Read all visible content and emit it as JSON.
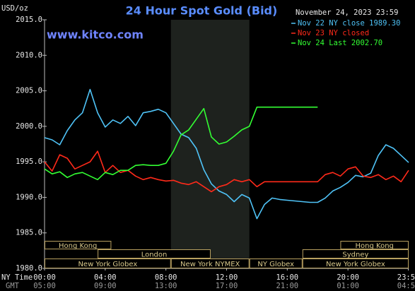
{
  "chart_data": {
    "type": "line",
    "title": "24 Hour Spot Gold (Bid)",
    "y_unit_label": "USD/oz",
    "date_label": "November 24, 2023 23:59",
    "watermark": "www.kitco.com",
    "x_row_label": "NY Time",
    "x2_row_label": "GMT",
    "x": [
      0,
      0.5,
      1,
      1.5,
      2,
      2.5,
      3,
      3.5,
      4,
      4.5,
      5,
      5.5,
      6,
      6.5,
      7,
      7.5,
      8,
      8.5,
      9,
      9.5,
      10,
      10.5,
      11,
      11.5,
      12,
      12.5,
      13,
      13.5,
      14,
      14.5,
      15,
      15.5,
      16,
      16.5,
      17,
      17.5,
      18,
      18.5,
      19,
      19.5,
      20,
      20.5,
      21,
      21.5,
      22,
      22.5,
      23,
      23.5,
      24
    ],
    "series": [
      {
        "name": "Nov 22 NY close 1989.30",
        "color": "#4fc3f7",
        "values": [
          1998.4,
          1998.1,
          1997.4,
          1999.4,
          2000.9,
          2001.9,
          2005.2,
          2001.9,
          1999.9,
          2000.9,
          2000.4,
          2001.4,
          2000.1,
          2001.9,
          2002.1,
          2002.4,
          2001.9,
          2000.4,
          1998.9,
          1998.4,
          1996.9,
          1993.9,
          1991.9,
          1990.9,
          1990.4,
          1989.4,
          1990.4,
          1989.9,
          1987.0,
          1989.0,
          1989.9,
          1989.7,
          1989.6,
          1989.5,
          1989.4,
          1989.3,
          1989.3,
          1989.9,
          1990.9,
          1991.4,
          1992.1,
          1993.1,
          1992.9,
          1993.4,
          1995.9,
          1997.4,
          1996.9,
          1995.9,
          1994.9
        ]
      },
      {
        "name": "Nov 23 NY closed",
        "color": "#ff2a1a",
        "values": [
          1995.0,
          1993.7,
          1996.0,
          1995.5,
          1994.0,
          1994.5,
          1995.0,
          1996.5,
          1993.5,
          1994.5,
          1993.5,
          1993.8,
          1993.0,
          1992.5,
          1992.8,
          1992.5,
          1992.3,
          1992.4,
          1992.0,
          1991.8,
          1992.2,
          1991.5,
          1990.8,
          1991.5,
          1991.8,
          1992.5,
          1992.2,
          1992.5,
          1991.5,
          1992.2,
          1992.2,
          1992.2,
          1992.2,
          1992.2,
          1992.2,
          1992.2,
          1992.2,
          1993.2,
          1993.5,
          1993.0,
          1994.0,
          1994.3,
          1993.0,
          1992.8,
          1993.2,
          1992.5,
          1993.0,
          1992.2,
          1993.8
        ]
      },
      {
        "name": "Nov 24 Last 2002.70",
        "color": "#33ff33",
        "values": [
          1994.0,
          1993.3,
          1993.6,
          1992.8,
          1993.3,
          1993.5,
          1993.0,
          1992.5,
          1993.5,
          1993.2,
          1993.8,
          1993.8,
          1994.5,
          1994.6,
          1994.5,
          1994.5,
          1994.8,
          1996.5,
          1998.8,
          1999.5,
          2001.0,
          2002.5,
          1998.5,
          1997.5,
          1997.8,
          1998.6,
          1999.5,
          2000.0,
          2002.7,
          2002.7,
          2002.7,
          2002.7,
          2002.7,
          2002.7,
          2002.7,
          2002.7,
          2002.7,
          null,
          null,
          null,
          null,
          null,
          null,
          null,
          null,
          null,
          null,
          null,
          null
        ]
      }
    ],
    "xlim": [
      0,
      24
    ],
    "xticks": [
      {
        "value": 0,
        "label": "00:00"
      },
      {
        "value": 4,
        "label": "04:00"
      },
      {
        "value": 8,
        "label": "08:00"
      },
      {
        "value": 12,
        "label": "12:00"
      },
      {
        "value": 16,
        "label": "16:00"
      },
      {
        "value": 20,
        "label": "20:00"
      },
      {
        "value": 23.98,
        "label": "23:59"
      }
    ],
    "x2tick_labels": [
      "05:00",
      "09:00",
      "13:00",
      "17:00",
      "21:00",
      "01:00",
      "04:59"
    ],
    "ylim": [
      1980,
      2015
    ],
    "yticks": [
      {
        "value": 1980,
        "label": "1980.0"
      },
      {
        "value": 1985,
        "label": "1985.0"
      },
      {
        "value": 1990,
        "label": "1990.0"
      },
      {
        "value": 1995,
        "label": "1995.0"
      },
      {
        "value": 2000,
        "label": "2000.0"
      },
      {
        "value": 2005,
        "label": "2005.0"
      },
      {
        "value": 2010,
        "label": "2010.0"
      },
      {
        "value": 2015,
        "label": "2015.0"
      }
    ],
    "grid": false,
    "shaded_hours": [
      8.33,
      13.5
    ],
    "session_rows": [
      [
        {
          "label": "Hong Kong",
          "start": 0,
          "end": 4.4
        },
        {
          "label": "Hong Kong",
          "start": 19.5,
          "end": 24
        }
      ],
      [
        {
          "label": "London",
          "start": 3.5,
          "end": 10.95
        },
        {
          "label": "Sydney",
          "start": 17,
          "end": 24
        }
      ],
      [
        {
          "label": "New York Globex",
          "start": 0,
          "end": 8.33
        },
        {
          "label": "New York NYMEX",
          "start": 8.33,
          "end": 13.5
        },
        {
          "label": "NY Globex",
          "start": 13.5,
          "end": 17
        },
        {
          "label": "New York Globex",
          "start": 17,
          "end": 24
        }
      ]
    ]
  }
}
